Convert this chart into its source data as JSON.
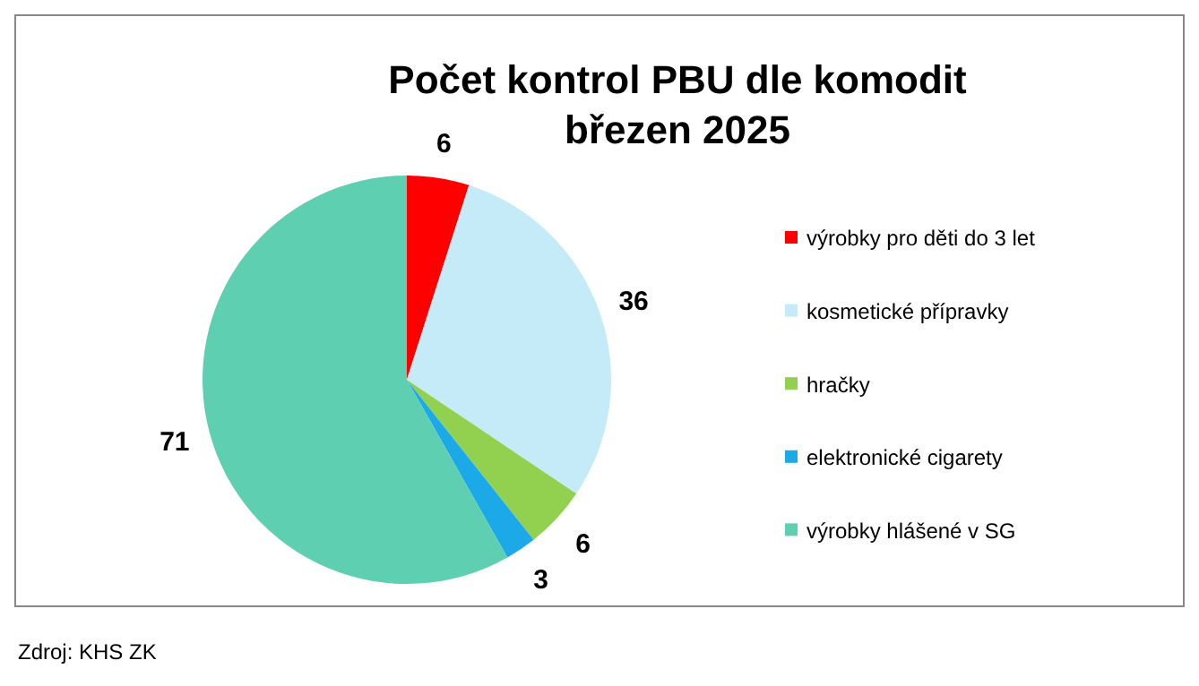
{
  "chart_data": {
    "type": "pie",
    "title": "Počet kontrol PBU dle komodit\nbřezen 2025",
    "categories": [
      "výrobky pro děti do 3 let",
      "kosmetické přípravky",
      "hračky",
      "elektronické cigarety",
      "výrobky hlášené v SG"
    ],
    "values": [
      6,
      36,
      6,
      3,
      71
    ],
    "colors": [
      "#ff0000",
      "#c5ebf9",
      "#92d050",
      "#1ba9e8",
      "#5ecfb1"
    ],
    "data_labels": true,
    "legend": "right",
    "annotations": [
      "Zdroj: KHS ZK"
    ]
  }
}
